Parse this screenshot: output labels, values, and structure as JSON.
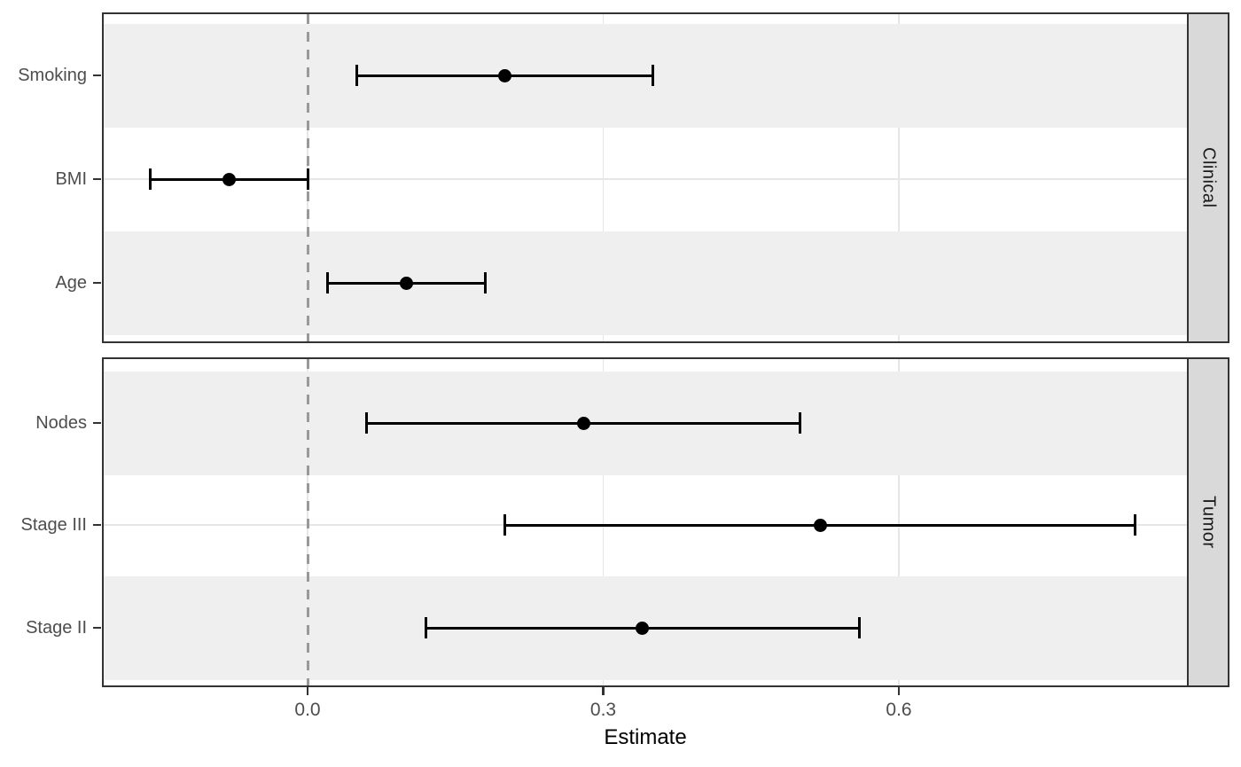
{
  "chart_data": {
    "type": "scatter",
    "subtype": "faceted-forest-plot-with-error-bars",
    "title": "",
    "xlabel": "Estimate",
    "ylabel": "",
    "xticks": [
      0,
      0.3,
      0.6
    ],
    "xtick_labels": [
      "0.0",
      "0.3",
      "0.6"
    ],
    "xlim": [
      -0.21,
      0.9
    ],
    "reference_line_x": 0,
    "legend": "none",
    "grid": "major",
    "facets": [
      {
        "label": "Clinical",
        "rows": [
          {
            "label": "Smoking",
            "estimate": 0.2,
            "ci_low": 0.05,
            "ci_high": 0.35
          },
          {
            "label": "BMI",
            "estimate": -0.08,
            "ci_low": -0.16,
            "ci_high": 0.0
          },
          {
            "label": "Age",
            "estimate": 0.1,
            "ci_low": 0.02,
            "ci_high": 0.18
          }
        ]
      },
      {
        "label": "Tumor",
        "rows": [
          {
            "label": "Nodes",
            "estimate": 0.28,
            "ci_low": 0.06,
            "ci_high": 0.5
          },
          {
            "label": "Stage III",
            "estimate": 0.52,
            "ci_low": 0.2,
            "ci_high": 0.84
          },
          {
            "label": "Stage II",
            "estimate": 0.34,
            "ci_low": 0.12,
            "ci_high": 0.56
          }
        ]
      }
    ],
    "colors": {
      "stripe": "#efefef",
      "strip_fill": "#d9d9d9",
      "panel_border": "#333333",
      "gridline": "#e6e6e6",
      "reference_line": "#999999",
      "marker": "#000000",
      "axis_text": "#4d4d4d",
      "axis_title": "#000000",
      "background": "#ffffff"
    }
  }
}
